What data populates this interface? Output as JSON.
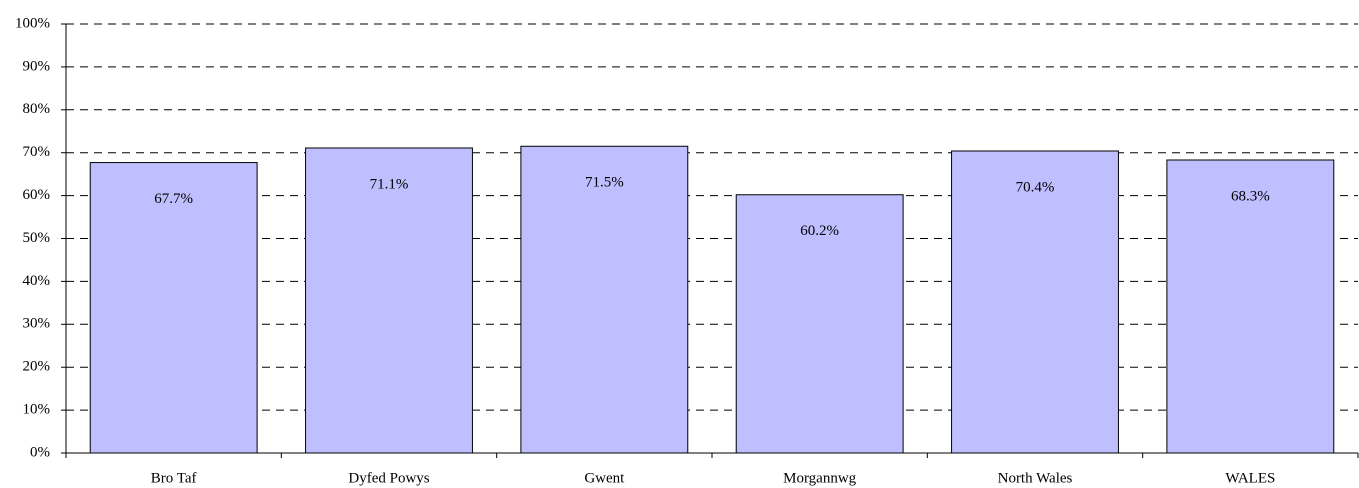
{
  "chart_data": {
    "type": "bar",
    "categories": [
      "Bro Taf",
      "Dyfed Powys",
      "Gwent",
      "Morgannwg",
      "North Wales",
      "WALES"
    ],
    "values": [
      67.7,
      71.1,
      71.5,
      60.2,
      70.4,
      68.3
    ],
    "value_labels": [
      "67.7%",
      "71.1%",
      "71.5%",
      "60.2%",
      "70.4%",
      "68.3%"
    ],
    "color": "#bfbfff",
    "ylim": [
      0,
      100
    ],
    "yticks": [
      {
        "value": 0,
        "label": "0%"
      },
      {
        "value": 10,
        "label": "10%"
      },
      {
        "value": 20,
        "label": "20%"
      },
      {
        "value": 30,
        "label": "30%"
      },
      {
        "value": 40,
        "label": "40%"
      },
      {
        "value": 50,
        "label": "50%"
      },
      {
        "value": 60,
        "label": "60%"
      },
      {
        "value": 70,
        "label": "70%"
      },
      {
        "value": 80,
        "label": "80%"
      },
      {
        "value": 90,
        "label": "90%"
      },
      {
        "value": 100,
        "label": "100%"
      }
    ],
    "grid": true
  }
}
